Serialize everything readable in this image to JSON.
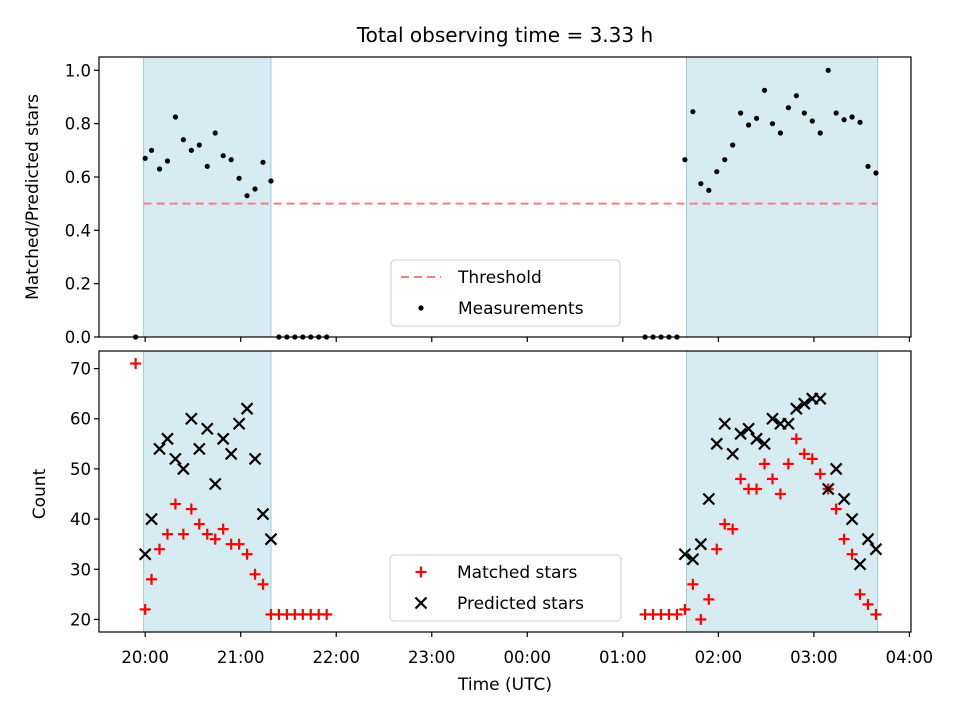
{
  "chart_data": [
    {
      "type": "scatter",
      "title": "Total observing time = 3.33 h",
      "xlabel": "",
      "ylabel": "Matched/Predicted stars",
      "xlim": [
        "19:31",
        "04:01"
      ],
      "ylim": [
        0,
        1.05
      ],
      "yticks": [
        0.0,
        0.2,
        0.4,
        0.6,
        0.8,
        1.0
      ],
      "ytick_labels": [
        "0.0",
        "0.2",
        "0.4",
        "0.6",
        "0.8",
        "1.0"
      ],
      "shaded_intervals": [
        [
          "19:59",
          "21:19"
        ],
        [
          "01:40",
          "03:40"
        ]
      ],
      "threshold": {
        "name": "Threshold",
        "value": 0.5,
        "x_range": [
          "19:59",
          "03:40"
        ],
        "color": "#f08080"
      },
      "measurements": {
        "name": "Measurements",
        "color": "#000000",
        "x": [
          "19:54",
          "20:00",
          "20:04",
          "20:09",
          "20:14",
          "20:19",
          "20:24",
          "20:29",
          "20:34",
          "20:39",
          "20:44",
          "20:49",
          "20:54",
          "20:59",
          "21:04",
          "21:09",
          "21:14",
          "21:19",
          "21:24",
          "21:29",
          "21:34",
          "21:39",
          "21:44",
          "21:49",
          "21:54",
          "01:14",
          "01:19",
          "01:24",
          "01:29",
          "01:34",
          "01:39",
          "01:44",
          "01:49",
          "01:54",
          "01:59",
          "02:04",
          "02:09",
          "02:14",
          "02:19",
          "02:24",
          "02:29",
          "02:34",
          "02:39",
          "02:44",
          "02:49",
          "02:54",
          "02:59",
          "03:04",
          "03:09",
          "03:14",
          "03:19",
          "03:24",
          "03:29",
          "03:34",
          "03:39"
        ],
        "y": [
          0.0,
          0.67,
          0.7,
          0.63,
          0.66,
          0.825,
          0.74,
          0.7,
          0.72,
          0.64,
          0.765,
          0.68,
          0.665,
          0.595,
          0.53,
          0.555,
          0.655,
          0.585,
          0.0,
          0.0,
          0.0,
          0.0,
          0.0,
          0.0,
          0.0,
          0.0,
          0.0,
          0.0,
          0.0,
          0.0,
          0.665,
          0.845,
          0.575,
          0.55,
          0.62,
          0.665,
          0.72,
          0.84,
          0.795,
          0.82,
          0.925,
          0.8,
          0.765,
          0.86,
          0.905,
          0.84,
          0.81,
          0.765,
          1.0,
          0.84,
          0.815,
          0.825,
          0.805,
          0.64,
          0.615
        ]
      },
      "legend": {
        "placement": "lower center",
        "entries": [
          "Threshold",
          "Measurements"
        ]
      }
    },
    {
      "type": "scatter",
      "title": "",
      "xlabel": "Time (UTC)",
      "ylabel": "Count",
      "xlim": [
        "19:31",
        "04:01"
      ],
      "ylim": [
        17.5,
        73.5
      ],
      "yticks": [
        20,
        30,
        40,
        50,
        60,
        70
      ],
      "ytick_labels": [
        "20",
        "30",
        "40",
        "50",
        "60",
        "70"
      ],
      "xticks": [
        "20:00",
        "21:00",
        "22:00",
        "23:00",
        "00:00",
        "01:00",
        "02:00",
        "03:00",
        "04:00"
      ],
      "xtick_labels": [
        "20:00",
        "21:00",
        "22:00",
        "23:00",
        "00:00",
        "01:00",
        "02:00",
        "03:00",
        "04:00"
      ],
      "shaded_intervals": [
        [
          "19:59",
          "21:19"
        ],
        [
          "01:40",
          "03:40"
        ]
      ],
      "series": [
        {
          "name": "Matched stars",
          "marker": "plus",
          "color": "#ff0000",
          "x": [
            "19:54",
            "20:00",
            "20:04",
            "20:09",
            "20:14",
            "20:19",
            "20:24",
            "20:29",
            "20:34",
            "20:39",
            "20:44",
            "20:49",
            "20:54",
            "20:59",
            "21:04",
            "21:09",
            "21:14",
            "21:19",
            "21:24",
            "21:29",
            "21:34",
            "21:39",
            "21:44",
            "21:49",
            "21:54",
            "01:14",
            "01:19",
            "01:24",
            "01:29",
            "01:34",
            "01:39",
            "01:44",
            "01:49",
            "01:54",
            "01:59",
            "02:04",
            "02:09",
            "02:14",
            "02:19",
            "02:24",
            "02:29",
            "02:34",
            "02:39",
            "02:44",
            "02:49",
            "02:54",
            "02:59",
            "03:04",
            "03:09",
            "03:14",
            "03:19",
            "03:24",
            "03:29",
            "03:34",
            "03:39"
          ],
          "y": [
            71,
            22,
            28,
            34,
            37,
            43,
            37,
            42,
            39,
            37,
            36,
            38,
            35,
            35,
            33,
            29,
            27,
            21,
            21,
            21,
            21,
            21,
            21,
            21,
            21,
            21,
            21,
            21,
            21,
            21,
            22,
            27,
            20,
            24,
            34,
            39,
            38,
            48,
            46,
            46,
            51,
            48,
            45,
            51,
            56,
            53,
            52,
            49,
            46,
            42,
            36,
            33,
            25,
            23,
            21
          ]
        },
        {
          "name": "Predicted stars",
          "marker": "x",
          "color": "#000000",
          "x": [
            "20:00",
            "20:04",
            "20:09",
            "20:14",
            "20:19",
            "20:24",
            "20:29",
            "20:34",
            "20:39",
            "20:44",
            "20:49",
            "20:54",
            "20:59",
            "21:04",
            "21:09",
            "21:14",
            "21:19",
            "01:39",
            "01:44",
            "01:49",
            "01:54",
            "01:59",
            "02:04",
            "02:09",
            "02:14",
            "02:19",
            "02:24",
            "02:29",
            "02:34",
            "02:39",
            "02:44",
            "02:49",
            "02:54",
            "02:59",
            "03:04",
            "03:09",
            "03:14",
            "03:19",
            "03:24",
            "03:29",
            "03:34",
            "03:39"
          ],
          "y": [
            33,
            40,
            54,
            56,
            52,
            50,
            60,
            54,
            58,
            47,
            56,
            53,
            59,
            62,
            52,
            41,
            36,
            33,
            32,
            35,
            44,
            55,
            59,
            53,
            57,
            58,
            56,
            55,
            60,
            59,
            59,
            62,
            63,
            64,
            64,
            46,
            50,
            44,
            40,
            31,
            36,
            34
          ]
        }
      ],
      "legend": {
        "placement": "lower center",
        "entries": [
          "Matched stars",
          "Predicted stars"
        ]
      }
    }
  ]
}
